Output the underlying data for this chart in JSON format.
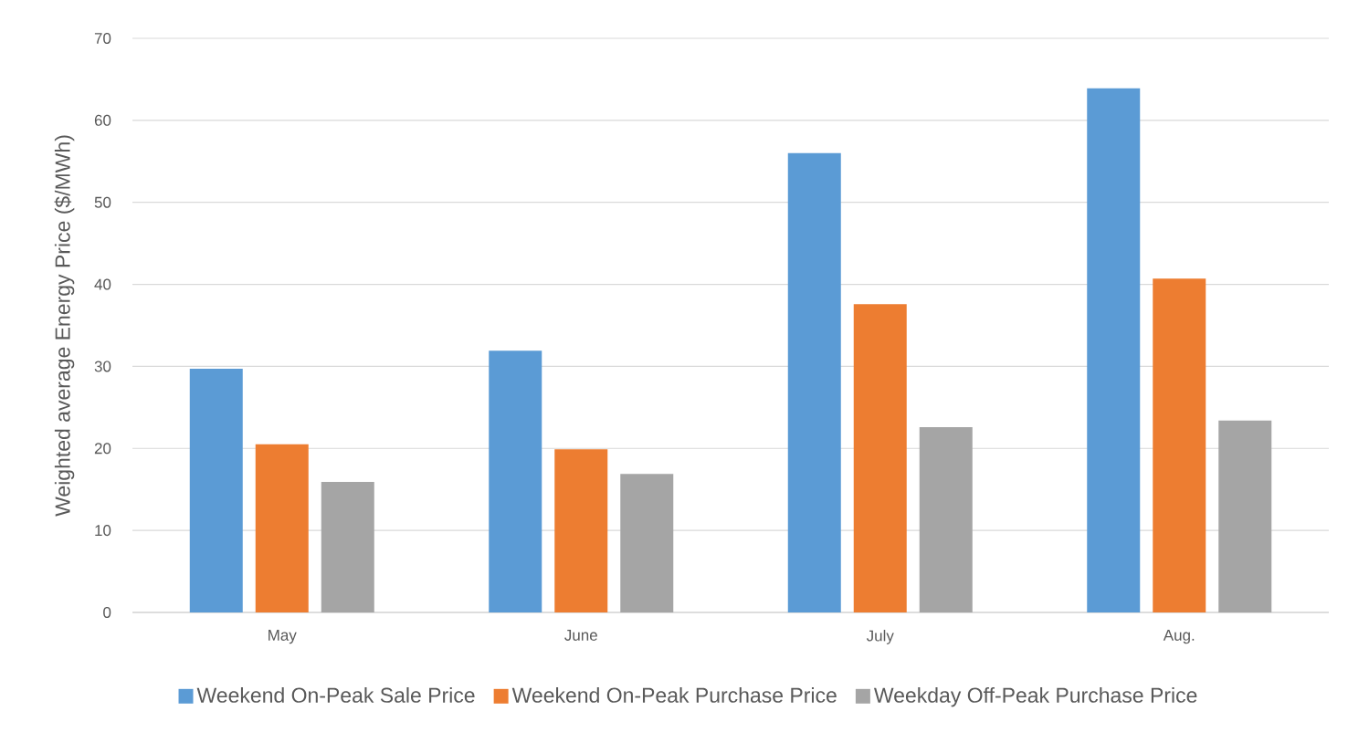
{
  "chart_data": {
    "type": "bar",
    "ylabel": "Weighted average Energy Price ($/MWh)",
    "categories": [
      "May",
      "June",
      "July",
      "Aug."
    ],
    "series": [
      {
        "name": "Weekend On-Peak Sale Price",
        "color": "#5b9bd5",
        "values": [
          29.7,
          31.9,
          56.0,
          63.9
        ]
      },
      {
        "name": "Weekend On-Peak Purchase Price",
        "color": "#ed7d31",
        "values": [
          20.5,
          19.9,
          37.6,
          40.7
        ]
      },
      {
        "name": "Weekday Off-Peak Purchase Price",
        "color": "#a5a5a5",
        "values": [
          15.9,
          16.9,
          22.6,
          23.4
        ]
      }
    ],
    "ylim": [
      0,
      70
    ],
    "yticks": [
      0,
      10,
      20,
      30,
      40,
      50,
      60,
      70
    ],
    "grid": "y",
    "legend": "bottom"
  }
}
